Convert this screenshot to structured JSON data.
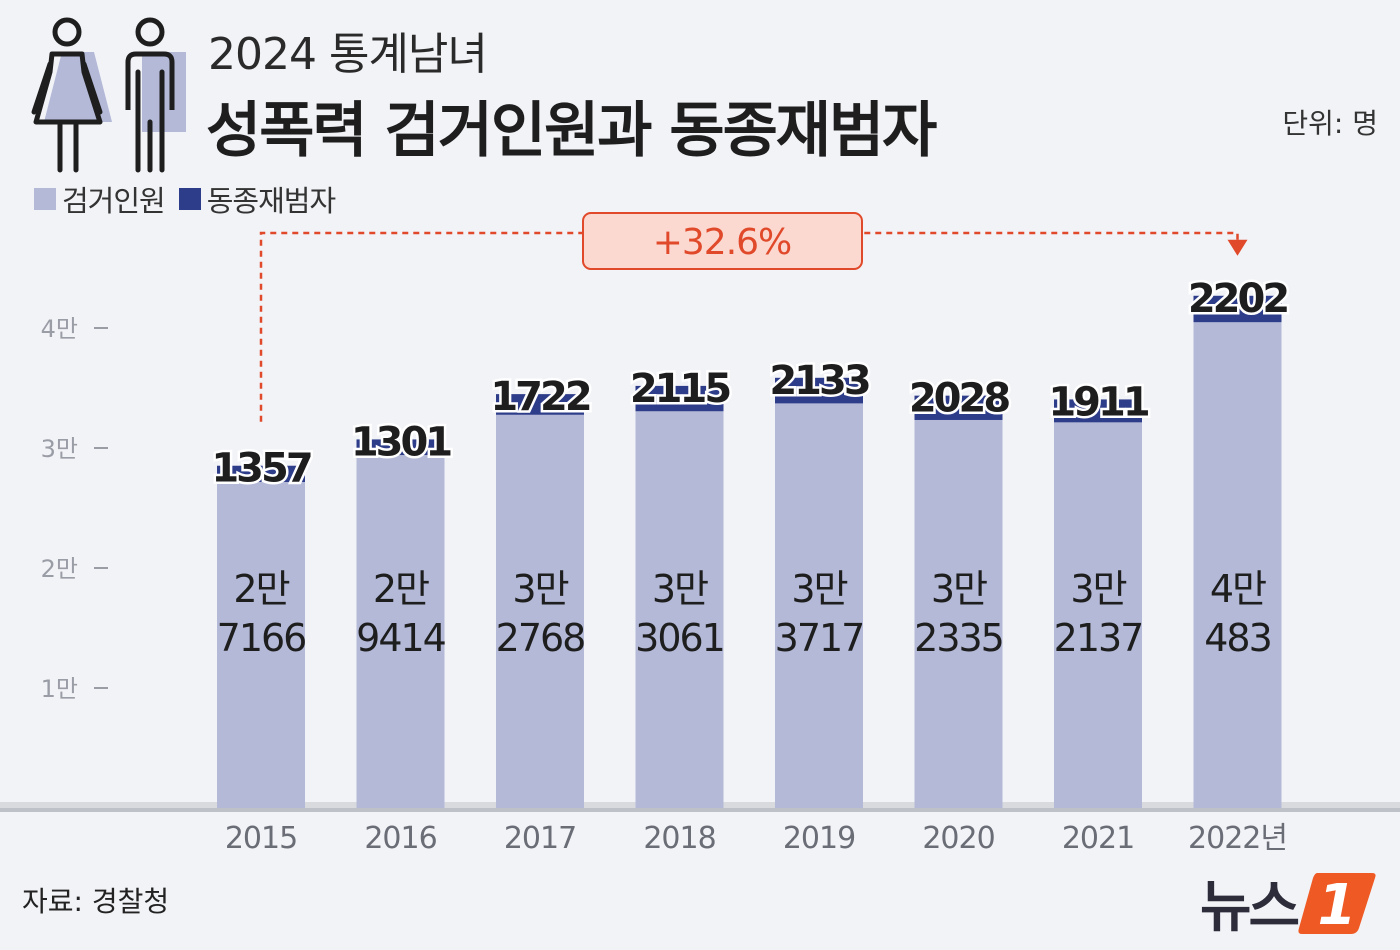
{
  "header": {
    "subtitle": "2024 통계남녀",
    "title": "성폭력 검거인원과 동종재범자",
    "unit": "단위: 명"
  },
  "legend": {
    "items": [
      {
        "label": "검거인원",
        "color": "#b3b9d7"
      },
      {
        "label": "동종재범자",
        "color": "#2e3d8a"
      }
    ]
  },
  "chart_data": {
    "type": "bar",
    "stacked": true,
    "categories": [
      "2015",
      "2016",
      "2017",
      "2018",
      "2019",
      "2020",
      "2021",
      "2022년"
    ],
    "series": [
      {
        "name": "검거인원",
        "values": [
          27166,
          29414,
          32768,
          33061,
          33717,
          32335,
          32137,
          40483
        ],
        "color": "#b3b9d7"
      },
      {
        "name": "동종재범자",
        "values": [
          1357,
          1301,
          1722,
          2115,
          2133,
          2028,
          1911,
          2202
        ],
        "color": "#2e3d8a"
      }
    ],
    "bar_labels_top": [
      "1357",
      "1301",
      "1722",
      "2115",
      "2133",
      "2028",
      "1911",
      "2202"
    ],
    "bar_labels_inner": [
      [
        "2만",
        "7166"
      ],
      [
        "2만",
        "9414"
      ],
      [
        "3만",
        "2768"
      ],
      [
        "3만",
        "3061"
      ],
      [
        "3만",
        "3717"
      ],
      [
        "3만",
        "2335"
      ],
      [
        "3만",
        "2137"
      ],
      [
        "4만",
        "483"
      ]
    ],
    "y_ticks": [
      {
        "value": 10000,
        "label": "1만"
      },
      {
        "value": 20000,
        "label": "2만"
      },
      {
        "value": 30000,
        "label": "3만"
      },
      {
        "value": 40000,
        "label": "4만"
      }
    ],
    "ylim": [
      0,
      40000
    ],
    "grid": false,
    "legend": "top-left",
    "annotation": {
      "text": "+32.6%",
      "from": "2015",
      "to": "2022년",
      "color": "#e0492a",
      "fill": "#fbd9d0"
    }
  },
  "footer": {
    "source": "자료: 경찰청",
    "logo_text": "뉴스",
    "logo_mark": "1"
  }
}
